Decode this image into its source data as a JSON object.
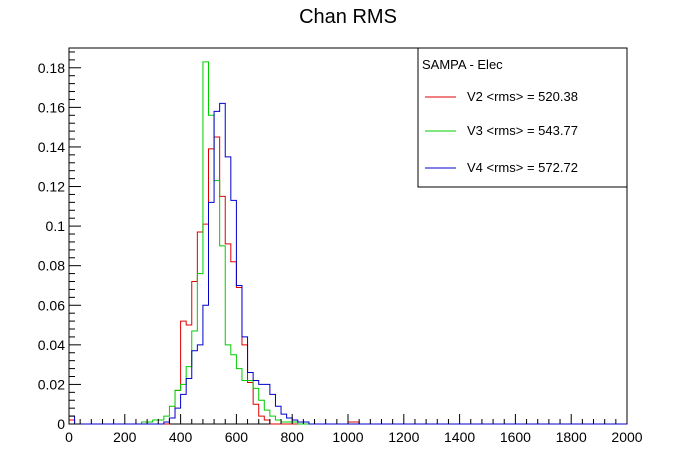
{
  "chart_data": {
    "type": "line",
    "subtype": "step-histogram",
    "title": "Chan RMS",
    "xlim": [
      0,
      2000
    ],
    "ylim": [
      0,
      0.19
    ],
    "x_ticks": [
      0,
      200,
      400,
      600,
      800,
      1000,
      1200,
      1400,
      1600,
      1800,
      2000
    ],
    "x_tick_labels": [
      "0",
      "200",
      "400",
      "600",
      "800",
      "1000",
      "1200",
      "1400",
      "1600",
      "1800",
      "2000"
    ],
    "y_ticks": [
      0,
      0.02,
      0.04,
      0.06,
      0.08,
      0.1,
      0.12,
      0.14,
      0.16,
      0.18
    ],
    "y_tick_labels": [
      "0",
      "0.02",
      "0.04",
      "0.06",
      "0.08",
      "0.1",
      "0.12",
      "0.14",
      "0.16",
      "0.18"
    ],
    "grid": false,
    "legend": {
      "header": "SAMPA - Elec",
      "placement": "top-right",
      "entries": [
        {
          "label": "V2 <rms> = 520.38",
          "color": "#e00000"
        },
        {
          "label": "V3 <rms> = 543.77",
          "color": "#00cc00"
        },
        {
          "label": "V4 <rms> = 572.72",
          "color": "#0000cc"
        }
      ]
    },
    "bin_width": 20,
    "x": [
      0,
      20,
      40,
      60,
      80,
      100,
      120,
      140,
      160,
      180,
      200,
      220,
      240,
      260,
      280,
      300,
      320,
      340,
      360,
      380,
      400,
      420,
      440,
      460,
      480,
      500,
      520,
      540,
      560,
      580,
      600,
      620,
      640,
      660,
      680,
      700,
      720,
      740,
      760,
      780,
      800,
      820,
      840,
      860,
      880,
      900,
      920,
      940,
      960,
      980,
      1000,
      1020,
      1040,
      1060,
      1080,
      1100,
      1120,
      1140,
      1160,
      1180,
      1200,
      1220,
      1240,
      1260,
      1280,
      1300,
      1320,
      1340,
      1360,
      1380,
      1400,
      1420,
      1440,
      1460,
      1480,
      1500,
      1520,
      1540,
      1560,
      1580,
      1600,
      1620,
      1640,
      1660,
      1680,
      1700,
      1720,
      1740,
      1760,
      1780,
      1800,
      1820,
      1840,
      1860,
      1880,
      1900,
      1920,
      1940,
      1960,
      1980
    ],
    "series": [
      {
        "name": "V2 <rms> = 520.38",
        "color": "#e00000",
        "values": [
          0.002,
          0,
          0,
          0,
          0,
          0,
          0,
          0,
          0,
          0,
          0,
          0,
          0,
          0,
          0,
          0,
          0,
          0,
          0.003,
          0.017,
          0.052,
          0.05,
          0.072,
          0.097,
          0.101,
          0.139,
          0.145,
          0.115,
          0.091,
          0.082,
          0.069,
          0.04,
          0.021,
          0.01,
          0.004,
          0.002,
          0,
          0,
          0,
          0,
          0,
          0,
          0,
          0,
          0,
          0,
          0,
          0,
          0,
          0,
          0.001,
          0.001,
          0,
          0,
          0,
          0,
          0,
          0,
          0,
          0,
          0,
          0,
          0,
          0,
          0,
          0,
          0,
          0,
          0,
          0,
          0,
          0,
          0,
          0,
          0,
          0,
          0,
          0,
          0,
          0,
          0,
          0,
          0,
          0,
          0,
          0,
          0,
          0,
          0,
          0,
          0,
          0,
          0,
          0,
          0,
          0,
          0,
          0,
          0,
          0
        ]
      },
      {
        "name": "V3 <rms> = 543.77",
        "color": "#00cc00",
        "values": [
          0,
          0,
          0,
          0,
          0,
          0,
          0,
          0,
          0,
          0,
          0,
          0,
          0,
          0.001,
          0.001,
          0.002,
          0.002,
          0.004,
          0.009,
          0.017,
          0.02,
          0.029,
          0.047,
          0.076,
          0.183,
          0.156,
          0.123,
          0.09,
          0.04,
          0.035,
          0.028,
          0.022,
          0.022,
          0.018,
          0.012,
          0.007,
          0.004,
          0.002,
          0.001,
          0.001,
          0.001,
          0,
          0,
          0,
          0,
          0,
          0,
          0,
          0,
          0,
          0,
          0,
          0,
          0,
          0,
          0,
          0,
          0,
          0,
          0,
          0,
          0,
          0,
          0,
          0,
          0,
          0,
          0,
          0,
          0,
          0,
          0,
          0,
          0,
          0,
          0,
          0,
          0,
          0,
          0,
          0,
          0,
          0,
          0,
          0,
          0,
          0,
          0,
          0,
          0,
          0,
          0,
          0,
          0,
          0,
          0,
          0,
          0,
          0,
          0
        ]
      },
      {
        "name": "V4 <rms> = 572.72",
        "color": "#0000cc",
        "values": [
          0.004,
          0,
          0,
          0,
          0,
          0,
          0,
          0,
          0,
          0,
          0,
          0,
          0,
          0,
          0,
          0,
          0,
          0.001,
          0.003,
          0.008,
          0.015,
          0.023,
          0.037,
          0.04,
          0.06,
          0.112,
          0.158,
          0.162,
          0.135,
          0.113,
          0.07,
          0.044,
          0.026,
          0.022,
          0.02,
          0.02,
          0.015,
          0.009,
          0.005,
          0.003,
          0.002,
          0.001,
          0.001,
          0,
          0,
          0,
          0,
          0,
          0,
          0,
          0,
          0,
          0,
          0,
          0,
          0,
          0,
          0,
          0,
          0,
          0,
          0,
          0,
          0,
          0,
          0,
          0,
          0,
          0,
          0,
          0,
          0,
          0,
          0,
          0,
          0,
          0,
          0,
          0,
          0,
          0,
          0,
          0,
          0,
          0,
          0,
          0,
          0,
          0,
          0,
          0,
          0,
          0,
          0,
          0,
          0,
          0,
          0,
          0,
          0
        ]
      }
    ]
  }
}
